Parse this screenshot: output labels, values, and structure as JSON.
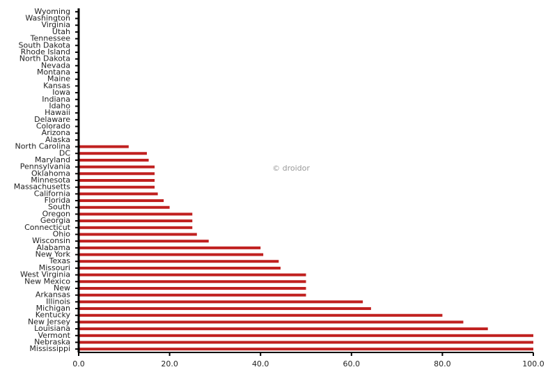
{
  "chart_data": {
    "type": "bar",
    "orientation": "horizontal",
    "watermark": "© droidor",
    "categories": [
      "Mississippi",
      "Nebraska",
      "Vermont",
      "Louisiana",
      "New Jersey",
      "Kentucky",
      "Michigan",
      "Illinois",
      "Arkansas",
      "New",
      "New Mexico",
      "West Virginia",
      "Missouri",
      "Texas",
      "New York",
      "Alabama",
      "Wisconsin",
      "Ohio",
      "Connecticut",
      "Georgia",
      "Oregon",
      "South",
      "Florida",
      "California",
      "Massachusetts",
      "Minnesota",
      "Oklahoma",
      "Pennsylvania",
      "Maryland",
      "DC",
      "North Carolina",
      "Alaska",
      "Arizona",
      "Colorado",
      "Delaware",
      "Hawaii",
      "Idaho",
      "Indiana",
      "Iowa",
      "Kansas",
      "Maine",
      "Montana",
      "Nevada",
      "North Dakota",
      "Rhode Island",
      "South Dakota",
      "Tennessee",
      "Utah",
      "Virginia",
      "Washington",
      "Wyoming"
    ],
    "values": [
      100,
      100,
      100,
      90,
      84.6,
      80,
      64.3,
      62.5,
      50,
      50,
      50,
      50,
      44.4,
      44,
      40.6,
      40,
      28.6,
      26,
      25,
      25,
      25,
      20,
      18.7,
      17.4,
      16.7,
      16.7,
      16.7,
      16.7,
      15.4,
      15,
      11,
      0,
      0,
      0,
      0,
      0,
      0,
      0,
      0,
      0,
      0,
      0,
      0,
      0,
      0,
      0,
      0,
      0,
      0,
      0,
      0
    ],
    "color": "#c0201f",
    "xlim": [
      0,
      100
    ],
    "xticks": [
      {
        "value": 0,
        "label": "0.0"
      },
      {
        "value": 20,
        "label": "20.0"
      },
      {
        "value": 40,
        "label": "40.0"
      },
      {
        "value": 60,
        "label": "60.0"
      },
      {
        "value": 80,
        "label": "80.0"
      },
      {
        "value": 100,
        "label": "100.0"
      }
    ],
    "grid": false
  }
}
